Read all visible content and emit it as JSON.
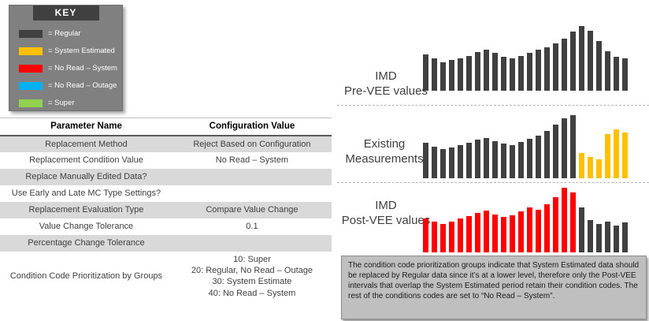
{
  "colors": {
    "regular": "#404040",
    "system_estimated": "#FFC000",
    "no_read_system": "#FF0000",
    "no_read_outage": "#00B0F0",
    "super": "#92D050"
  },
  "key": {
    "title": "KEY",
    "items": [
      {
        "label": "= Regular",
        "color": "#404040"
      },
      {
        "label": "= System Estimated",
        "color": "#FFC000"
      },
      {
        "label": "= No Read – System",
        "color": "#FF0000"
      },
      {
        "label": "= No Read – Outage",
        "color": "#00B0F0"
      },
      {
        "label": "= Super",
        "color": "#92D050"
      }
    ]
  },
  "table": {
    "headers": [
      "Parameter Name",
      "Configuration Value"
    ],
    "rows": [
      {
        "param": "Replacement Method",
        "value": "Reject Based on Configuration"
      },
      {
        "param": "Replacement Condition Value",
        "value": "No Read – System"
      },
      {
        "param": "Replace Manually Edited Data?",
        "value": ""
      },
      {
        "param": "Use Early and Late MC Type Settings?",
        "value": ""
      },
      {
        "param": "Replacement Evaluation Type",
        "value": "Compare Value Change"
      },
      {
        "param": "Value Change Tolerance",
        "value": "0.1"
      },
      {
        "param": "Percentage Change Tolerance",
        "value": ""
      },
      {
        "param": "Condition Code Prioritization by Groups",
        "value": "10: Super\n20: Regular, No Read – Outage\n30: System Estimate\n40: No Read – System"
      }
    ]
  },
  "chart_data": [
    {
      "type": "bar",
      "title": "IMD\nPre-VEE values",
      "x_categories": "unlabeled time intervals",
      "ylim": [
        0,
        100
      ],
      "values": [
        56,
        50,
        44,
        47,
        50,
        54,
        60,
        64,
        59,
        53,
        50,
        54,
        59,
        63,
        67,
        73,
        80,
        91,
        100,
        93,
        77,
        61,
        53,
        50
      ],
      "bar_colors": [
        "regular",
        "regular",
        "regular",
        "regular",
        "regular",
        "regular",
        "regular",
        "regular",
        "regular",
        "regular",
        "regular",
        "regular",
        "regular",
        "regular",
        "regular",
        "regular",
        "regular",
        "regular",
        "regular",
        "regular",
        "regular",
        "regular",
        "regular",
        "regular"
      ]
    },
    {
      "type": "bar",
      "title": "Existing\nMeasurements",
      "x_categories": "unlabeled time intervals",
      "ylim": [
        0,
        100
      ],
      "values": [
        56,
        50,
        46,
        49,
        52,
        56,
        61,
        64,
        59,
        55,
        53,
        57,
        62,
        68,
        75,
        85,
        95,
        100,
        40,
        34,
        30,
        70,
        78,
        73
      ],
      "bar_colors": [
        "regular",
        "regular",
        "regular",
        "regular",
        "regular",
        "regular",
        "regular",
        "regular",
        "regular",
        "regular",
        "regular",
        "regular",
        "regular",
        "regular",
        "regular",
        "regular",
        "regular",
        "regular",
        "system_estimated",
        "system_estimated",
        "system_estimated",
        "system_estimated",
        "system_estimated",
        "system_estimated"
      ]
    },
    {
      "type": "bar",
      "title": "IMD\nPost-VEE values",
      "x_categories": "unlabeled time intervals",
      "ylim": [
        0,
        100
      ],
      "values": [
        52,
        47,
        44,
        48,
        52,
        56,
        61,
        65,
        59,
        55,
        57,
        63,
        69,
        66,
        74,
        85,
        100,
        93,
        70,
        50,
        44,
        47,
        41,
        46
      ],
      "bar_colors": [
        "no_read_system",
        "no_read_system",
        "no_read_system",
        "no_read_system",
        "no_read_system",
        "no_read_system",
        "no_read_system",
        "no_read_system",
        "no_read_system",
        "no_read_system",
        "no_read_system",
        "no_read_system",
        "no_read_system",
        "no_read_system",
        "no_read_system",
        "no_read_system",
        "no_read_system",
        "no_read_system",
        "regular",
        "regular",
        "regular",
        "regular",
        "regular",
        "regular"
      ]
    }
  ],
  "callout": {
    "text": "The condition code prioritization groups indicate that System Estimated data should be replaced by Regular data since it’s at a lower level, therefore only the Post-VEE intervals that overlap the System Estimated period retain their condition codes.  The rest of the conditions codes are set to “No Read – System”."
  }
}
